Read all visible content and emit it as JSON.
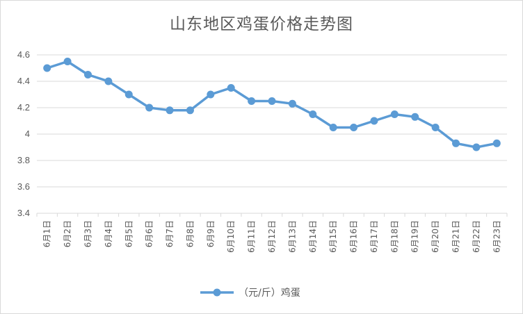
{
  "chart_data": {
    "type": "line",
    "title": "山东地区鸡蛋价格走势图",
    "categories": [
      "6月1日",
      "6月2日",
      "6月3日",
      "6月4日",
      "6月5日",
      "6月6日",
      "6月7日",
      "6月8日",
      "6月9日",
      "6月10日",
      "6月11日",
      "6月12日",
      "6月13日",
      "6月14日",
      "6月15日",
      "6月16日",
      "6月17日",
      "6月18日",
      "6月19日",
      "6月20日",
      "6月21日",
      "6月22日",
      "6月23日"
    ],
    "series": [
      {
        "name": "（元/斤）鸡蛋",
        "color": "#5b9bd5",
        "values": [
          4.5,
          4.55,
          4.45,
          4.4,
          4.3,
          4.2,
          4.18,
          4.18,
          4.3,
          4.35,
          4.25,
          4.25,
          4.23,
          4.15,
          4.05,
          4.05,
          4.1,
          4.15,
          4.13,
          4.05,
          3.93,
          3.9,
          3.93
        ]
      }
    ],
    "yticks": [
      "3.4",
      "3.6",
      "3.8",
      "4",
      "4.2",
      "4.4",
      "4.6"
    ],
    "ylim": [
      3.4,
      4.6
    ],
    "grid": true,
    "legend_position": "bottom"
  }
}
